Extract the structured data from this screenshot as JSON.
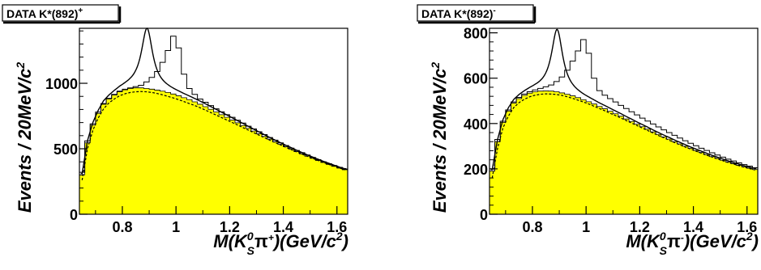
{
  "chart_data": [
    {
      "type": "histogram",
      "title": "DATA K*(892)",
      "title_charge": "+",
      "xlabel": {
        "m": "M(",
        "k": "K",
        "sup0": "0",
        "subS": "S",
        "pi": "π",
        "charge": "+",
        "unit": ")(GeV/c",
        "sq": "2",
        "close": ")"
      },
      "ylabel": {
        "main": "Events / 20MeV/c",
        "sq": "2"
      },
      "xlim": [
        0.64,
        1.64
      ],
      "ylim": [
        0,
        1420
      ],
      "xticks": [
        0.8,
        1.0,
        1.2,
        1.4,
        1.6
      ],
      "xtick_labels": [
        "0.8",
        "1",
        "1.2",
        "1.4",
        "1.6"
      ],
      "yticks": [
        0,
        500,
        1000
      ],
      "ytick_labels": [
        "0",
        "500",
        "1000"
      ],
      "bin_width": 0.02,
      "peak_mass": 0.892,
      "peak_width": 0.05,
      "data_values": [
        320,
        560,
        690,
        780,
        845,
        885,
        915,
        940,
        955,
        965,
        975,
        985,
        1010,
        1045,
        1090,
        1160,
        1250,
        1360,
        1270,
        1070,
        960,
        915,
        880,
        855,
        830,
        805,
        782,
        760,
        740,
        718,
        696,
        672,
        651,
        630,
        608,
        586,
        566,
        545,
        525,
        505,
        487,
        470,
        452,
        434,
        417,
        400,
        386,
        372,
        358,
        345
      ],
      "background_values": [
        300,
        545,
        680,
        770,
        840,
        880,
        910,
        935,
        950,
        960,
        965,
        965,
        960,
        955,
        948,
        940,
        930,
        918,
        905,
        890,
        875,
        858,
        840,
        821,
        801,
        781,
        760,
        740,
        719,
        698,
        677,
        656,
        635,
        614,
        594,
        573,
        553,
        534,
        515,
        497,
        478,
        461,
        443,
        427,
        411,
        395,
        381,
        366,
        352,
        340
      ],
      "dashed_values": [
        260,
        500,
        640,
        735,
        805,
        850,
        880,
        905,
        920,
        930,
        935,
        937,
        935,
        930,
        922,
        912,
        900,
        888,
        875,
        860,
        845,
        830,
        813,
        795,
        776,
        757,
        738,
        719,
        700,
        681,
        661,
        642,
        623,
        603,
        584,
        565,
        547,
        529,
        511,
        493,
        476,
        459,
        442,
        426,
        410,
        395,
        380,
        366,
        352,
        339
      ],
      "colors": {
        "fill": "#ffff00",
        "line": "#000000"
      },
      "grid": false
    },
    {
      "type": "histogram",
      "title": "DATA K*(892)",
      "title_charge": "-",
      "xlabel": {
        "m": "M(",
        "k": "K",
        "sup0": "0",
        "subS": "S",
        "pi": "π",
        "charge": "-",
        "unit": ")(GeV/c",
        "sq": "2",
        "close": ")"
      },
      "ylabel": {
        "main": "Events / 20MeV/c",
        "sq": "2"
      },
      "xlim": [
        0.64,
        1.64
      ],
      "ylim": [
        0,
        820
      ],
      "xticks": [
        0.8,
        1.0,
        1.2,
        1.4,
        1.6
      ],
      "xtick_labels": [
        "0.8",
        "1",
        "1.2",
        "1.4",
        "1.6"
      ],
      "yticks": [
        0,
        200,
        400,
        600,
        800
      ],
      "ytick_labels": [
        "0",
        "200",
        "400",
        "600",
        "800"
      ],
      "bin_width": 0.02,
      "peak_mass": 0.892,
      "peak_width": 0.05,
      "data_values": [
        200,
        330,
        410,
        460,
        495,
        515,
        530,
        540,
        548,
        555,
        562,
        570,
        585,
        605,
        635,
        675,
        720,
        770,
        710,
        600,
        545,
        525,
        510,
        495,
        480,
        466,
        452,
        438,
        424,
        411,
        398,
        385,
        372,
        360,
        348,
        336,
        324,
        313,
        302,
        291,
        281,
        271,
        261,
        252,
        243,
        235,
        227,
        219,
        212,
        205
      ],
      "background_values": [
        190,
        320,
        405,
        455,
        490,
        510,
        524,
        534,
        540,
        543,
        544,
        543,
        540,
        535,
        529,
        522,
        514,
        505,
        496,
        486,
        475,
        465,
        454,
        443,
        432,
        420,
        409,
        397,
        386,
        375,
        363,
        352,
        341,
        331,
        320,
        310,
        300,
        290,
        281,
        272,
        263,
        254,
        246,
        238,
        230,
        223,
        216,
        209,
        203,
        197
      ],
      "dashed_values": [
        160,
        290,
        380,
        432,
        470,
        492,
        507,
        518,
        525,
        529,
        531,
        530,
        528,
        524,
        518,
        511,
        503,
        495,
        486,
        476,
        466,
        456,
        445,
        435,
        424,
        413,
        402,
        391,
        380,
        369,
        358,
        347,
        337,
        326,
        316,
        306,
        296,
        287,
        278,
        269,
        260,
        252,
        244,
        236,
        228,
        221,
        214,
        207,
        201,
        195
      ],
      "colors": {
        "fill": "#ffff00",
        "line": "#000000"
      },
      "grid": false
    }
  ]
}
